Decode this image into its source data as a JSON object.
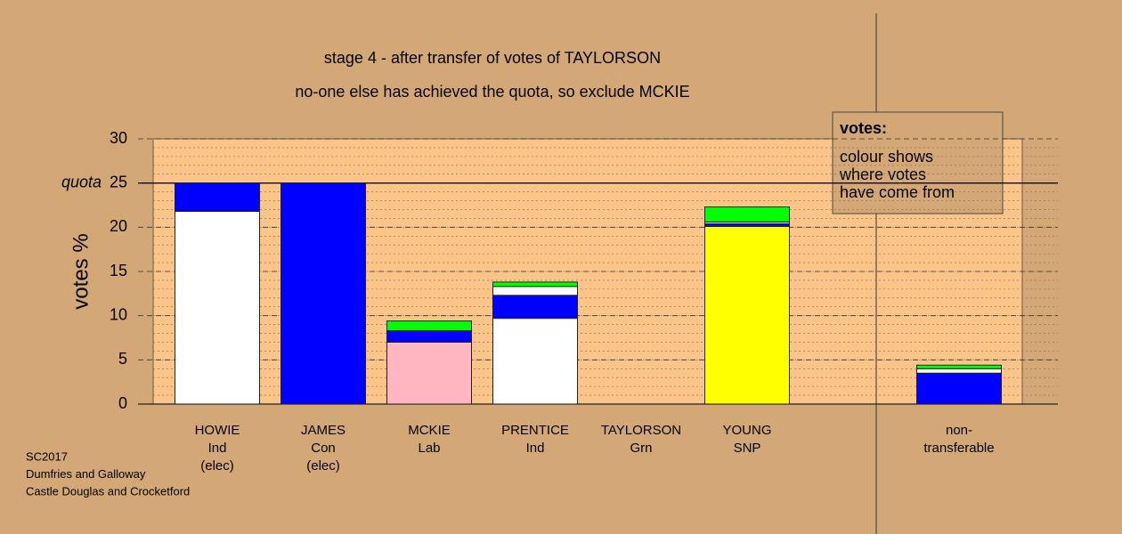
{
  "chart_data": {
    "type": "bar",
    "stacked": true,
    "title": "stage 4 - after transfer of votes of TAYLORSON",
    "subtitle": "no-one else has achieved the quota, so exclude MCKIE",
    "ylabel": "votes %",
    "categories": [
      [
        "HOWIE",
        "Ind",
        "(elec)"
      ],
      [
        "JAMES",
        "Con",
        "(elec)"
      ],
      [
        "MCKIE",
        "Lab"
      ],
      [
        "PRENTICE",
        "Ind"
      ],
      [
        "TAYLORSON",
        "Grn"
      ],
      [
        "YOUNG",
        "SNP"
      ],
      null,
      [
        "non-",
        "transferable"
      ]
    ],
    "series": [
      {
        "colors": [
          "#ffffff",
          "#0000ff",
          "#ffb6c1",
          "#ffffff",
          "#00ff00",
          "#ffff00",
          null,
          null
        ],
        "values": [
          21.8,
          25,
          7.0,
          9.7,
          null,
          20.1,
          null,
          null
        ]
      },
      {
        "color": "#0000ff",
        "values": [
          3.2,
          null,
          1.3,
          2.6,
          null,
          0.3,
          null,
          3.5
        ]
      },
      {
        "color": "#ffffff",
        "values": [
          null,
          null,
          null,
          1.0,
          null,
          0.2,
          null,
          0.5
        ]
      },
      {
        "color": "#00ff00",
        "values": [
          null,
          null,
          1.1,
          0.5,
          null,
          1.7,
          null,
          0.4
        ]
      }
    ],
    "ylim": [
      0,
      30
    ],
    "yticks": [
      0,
      5,
      10,
      15,
      20,
      25,
      30
    ],
    "grid": true,
    "minor_grid_step": 1,
    "quota": {
      "value": 25,
      "label": "quota"
    },
    "legend_box": {
      "title": "votes:",
      "lines": [
        "colour shows",
        "where votes",
        "have come from"
      ]
    },
    "footer": [
      "SC2017",
      "Dumfries and Galloway",
      "Castle Douglas and Crocketford"
    ]
  }
}
